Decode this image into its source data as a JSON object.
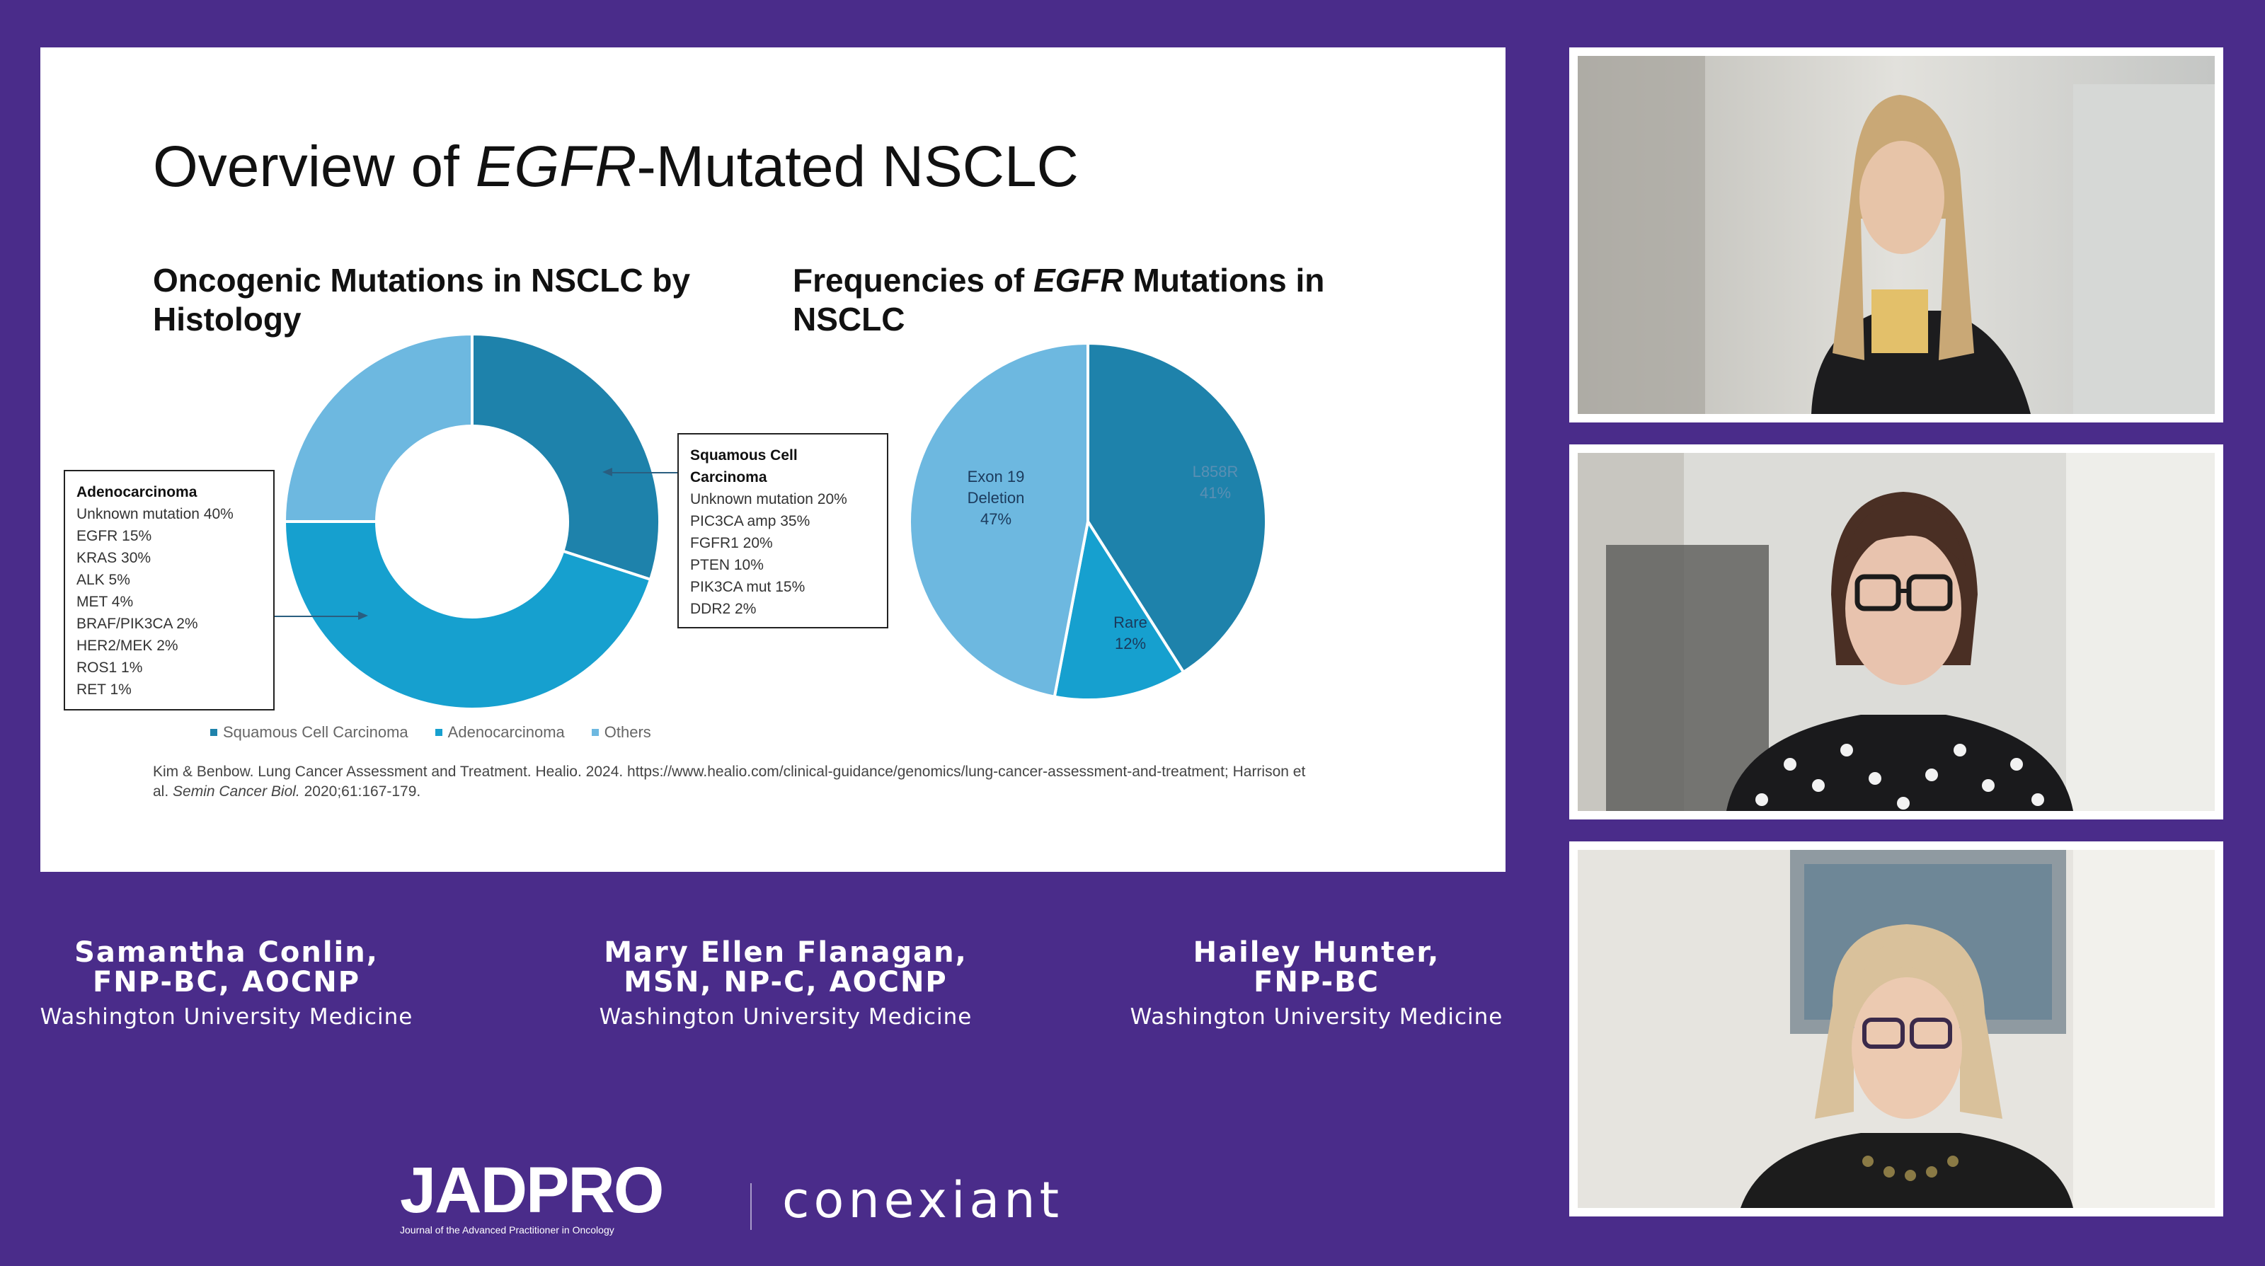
{
  "slide": {
    "title_pre": "Overview of ",
    "title_italic": "EGFR",
    "title_post": "-Mutated NSCLC",
    "left_heading": "Oncogenic Mutations in NSCLC by Histology",
    "right_heading_pre": "Frequencies of ",
    "right_heading_italic": "EGFR",
    "right_heading_post": " Mutations in NSCLC",
    "adeno_box": {
      "heading": "Adenocarcinoma",
      "lines": [
        "Unknown mutation 40%",
        "EGFR 15%",
        "KRAS 30%",
        "ALK 5%",
        "MET 4%",
        "BRAF/PIK3CA 2%",
        "HER2/MEK 2%",
        "ROS1 1%",
        "RET 1%"
      ]
    },
    "squam_box": {
      "heading": "Squamous Cell Carcinoma",
      "lines": [
        "Unknown mutation 20%",
        "PIC3CA amp 35%",
        "FGFR1 20%",
        "PTEN 10%",
        "PIK3CA mut 15%",
        "DDR2 2%"
      ]
    },
    "legend": [
      "Squamous Cell Carcinoma",
      "Adenocarcinoma",
      "Others"
    ],
    "citation_pre": "Kim & Benbow. Lung Cancer Assessment and Treatment. Healio. 2024. https://www.healio.com/clinical-guidance/genomics/lung-cancer-assessment-and-treatment; Harrison et al. ",
    "citation_italic": "Semin Cancer Biol.",
    "citation_post": " 2020;61:167-179.",
    "pie_labels": {
      "l858r": [
        "L858R",
        "41%"
      ],
      "rare": [
        "Rare",
        "12%"
      ],
      "exon": [
        "Exon 19",
        "Deletion",
        "47%"
      ]
    }
  },
  "chart_data": [
    {
      "type": "pie",
      "variant": "donut",
      "categories": [
        "Squamous Cell Carcinoma",
        "Adenocarcinoma",
        "Others"
      ],
      "values": [
        30,
        45,
        25
      ],
      "colors": [
        "#1e82ab",
        "#16a0cf",
        "#6db8e0"
      ],
      "legend": "bottom"
    },
    {
      "type": "pie",
      "categories": [
        "L858R",
        "Rare",
        "Exon 19 Deletion"
      ],
      "values": [
        41,
        12,
        47
      ],
      "colors": [
        "#1e82ab",
        "#16a0cf",
        "#6db8e0"
      ]
    }
  ],
  "speakers": [
    {
      "name1": "Samantha Conlin,",
      "name2": "FNP-BC, AOCNP",
      "affiliation": "Washington University Medicine"
    },
    {
      "name1": "Mary Ellen Flanagan,",
      "name2": "MSN, NP-C, AOCNP",
      "affiliation": "Washington University Medicine"
    },
    {
      "name1": "Hailey Hunter,",
      "name2": "FNP-BC",
      "affiliation": "Washington University Medicine"
    }
  ],
  "branding": {
    "jadpro": "JADPRO",
    "jadpro_tagline": "Journal of the Advanced Practitioner in Oncology",
    "conexiant": "conexiant"
  },
  "colors": {
    "background": "#4a2c8a",
    "slide": "#ffffff",
    "accent_dark": "#1e82ab",
    "accent_mid": "#16a0cf",
    "accent_light": "#6db8e0"
  }
}
